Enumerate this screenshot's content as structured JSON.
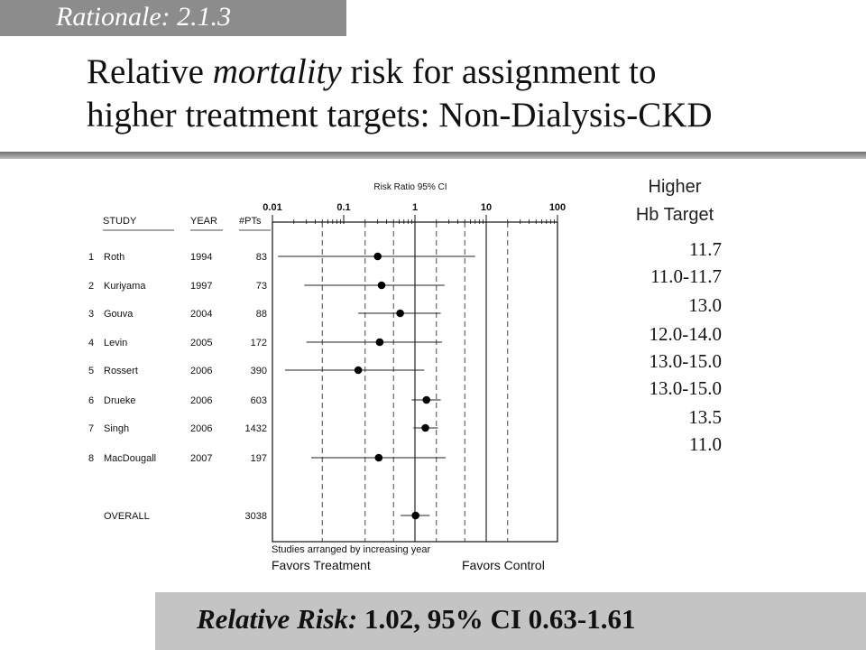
{
  "tag": "Rationale: 2.1.3",
  "title": {
    "line1_pre": "Relative ",
    "line1_em": "mortality",
    "line1_post": " risk for assignment to",
    "line2": "higher treatment targets:  Non-Dialysis-CKD"
  },
  "hb_header": [
    "Higher",
    "Hb Target"
  ],
  "hb_targets": [
    "11.7",
    "11.0-11.7",
    "13.0",
    "12.0-14.0",
    "13.0-15.0",
    "13.0-15.0",
    "13.5",
    "11.0"
  ],
  "summary": {
    "label": "Relative Risk:",
    "value": " 1.02, 95% CI 0.63-1.61"
  },
  "chart_data": {
    "type": "forest",
    "title": "Risk Ratio  95%   CI",
    "scale": "log",
    "x_ticks": [
      "0.01",
      "0.1",
      "1",
      "10",
      "100"
    ],
    "xlim": [
      0.01,
      100
    ],
    "columns": [
      "STUDY",
      "YEAR",
      "#PTs"
    ],
    "studies": [
      {
        "num": "1",
        "name": "Roth",
        "year": "1994",
        "pts": "83",
        "rr": 0.3,
        "ci": [
          0.012,
          7.0
        ]
      },
      {
        "num": "2",
        "name": "Kuriyama",
        "year": "1997",
        "pts": "73",
        "rr": 0.34,
        "ci": [
          0.028,
          2.6
        ]
      },
      {
        "num": "3",
        "name": "Gouva",
        "year": "2004",
        "pts": "88",
        "rr": 0.62,
        "ci": [
          0.16,
          2.3
        ]
      },
      {
        "num": "4",
        "name": "Levin",
        "year": "2005",
        "pts": "172",
        "rr": 0.32,
        "ci": [
          0.03,
          2.4
        ]
      },
      {
        "num": "5",
        "name": "Rossert",
        "year": "2006",
        "pts": "390",
        "rr": 0.16,
        "ci": [
          0.015,
          1.35
        ]
      },
      {
        "num": "6",
        "name": "Drueke",
        "year": "2006",
        "pts": "603",
        "rr": 1.45,
        "ci": [
          0.9,
          2.3
        ]
      },
      {
        "num": "7",
        "name": "Singh",
        "year": "2006",
        "pts": "1432",
        "rr": 1.4,
        "ci": [
          0.95,
          2.1
        ]
      },
      {
        "num": "8",
        "name": "MacDougall",
        "year": "2007",
        "pts": "197",
        "rr": 0.31,
        "ci": [
          0.035,
          2.7
        ]
      }
    ],
    "overall": {
      "label": "OVERALL",
      "pts": "3038",
      "rr": 1.02,
      "ci": [
        0.63,
        1.61
      ]
    },
    "footnote": "Studies arranged by increasing year",
    "favors_left": "Favors Treatment",
    "favors_right": "Favors Control"
  }
}
